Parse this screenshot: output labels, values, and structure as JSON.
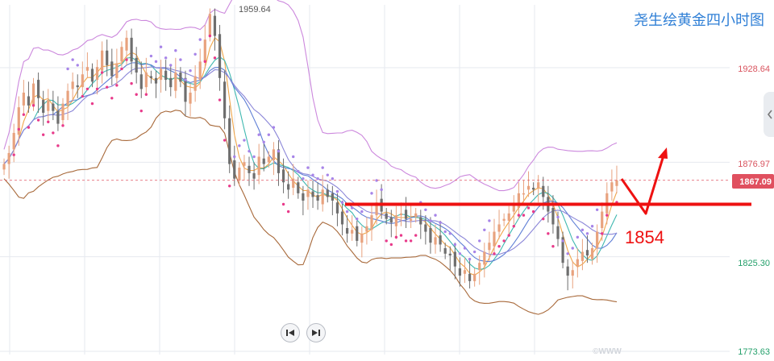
{
  "chart_title": "尧生绘黄金四小时图",
  "colors": {
    "up": "#e8a27e",
    "down": "#6e6e6e",
    "ma_fast": "#f0a64a",
    "ma_mid": "#3fb8b0",
    "ma_slow": "#5f7fd6",
    "ma_xslow": "#8b86d8",
    "boll_upper": "#cc88dd",
    "boll_lower": "#a8693a",
    "sar_up": "#e83a8a",
    "sar_down": "#a784e8",
    "support": "#ee1111",
    "price_tag": "#e0505f",
    "grid": "#e6e9ef"
  },
  "chart_data": {
    "type": "candlestick",
    "instrument": "XAUUSD",
    "timeframe": "4H",
    "y_axis": {
      "range": [
        1773.63,
        1970
      ],
      "tick_labels": [
        "1928.64",
        "1876.97",
        "1825.30",
        "1773.63"
      ],
      "ticks": [
        1928.64,
        1876.97,
        1825.3,
        1773.63
      ]
    },
    "high_label": "1959.64",
    "high_value": 1959.64,
    "current_price": 1867.09,
    "current_price_label": "1867.09",
    "support_level": 1854,
    "support_label": "1854",
    "watermark": "©WWW",
    "closes": [
      1876,
      1882,
      1893,
      1907,
      1915,
      1908,
      1920,
      1912,
      1904,
      1911,
      1905,
      1898,
      1909,
      1916,
      1921,
      1918,
      1925,
      1929,
      1921,
      1929,
      1938,
      1930,
      1924,
      1931,
      1940,
      1945,
      1932,
      1926,
      1917,
      1926,
      1923,
      1920,
      1928,
      1922,
      1918,
      1926,
      1921,
      1910,
      1915,
      1924,
      1932,
      1944,
      1958,
      1946,
      1923,
      1901,
      1876,
      1868,
      1874,
      1877,
      1871,
      1868,
      1880,
      1876,
      1880,
      1884,
      1871,
      1866,
      1862,
      1868,
      1860,
      1856,
      1862,
      1858,
      1856,
      1862,
      1858,
      1856,
      1849,
      1843,
      1838,
      1840,
      1834,
      1838,
      1842,
      1848,
      1855,
      1850,
      1846,
      1844,
      1848,
      1849,
      1846,
      1846,
      1849,
      1843,
      1839,
      1833,
      1836,
      1832,
      1827,
      1826,
      1820,
      1815,
      1818,
      1812,
      1816,
      1822,
      1828,
      1833,
      1839,
      1843,
      1846,
      1849,
      1854,
      1860,
      1860,
      1864,
      1862,
      1866,
      1858,
      1850,
      1843,
      1835,
      1822,
      1815,
      1818,
      1824,
      1828,
      1826,
      1830,
      1839,
      1850,
      1860,
      1866,
      1867.09
    ],
    "annotations": [
      "red horizontal support line at 1854",
      "red arrow: dip to support then rebound upward"
    ]
  }
}
